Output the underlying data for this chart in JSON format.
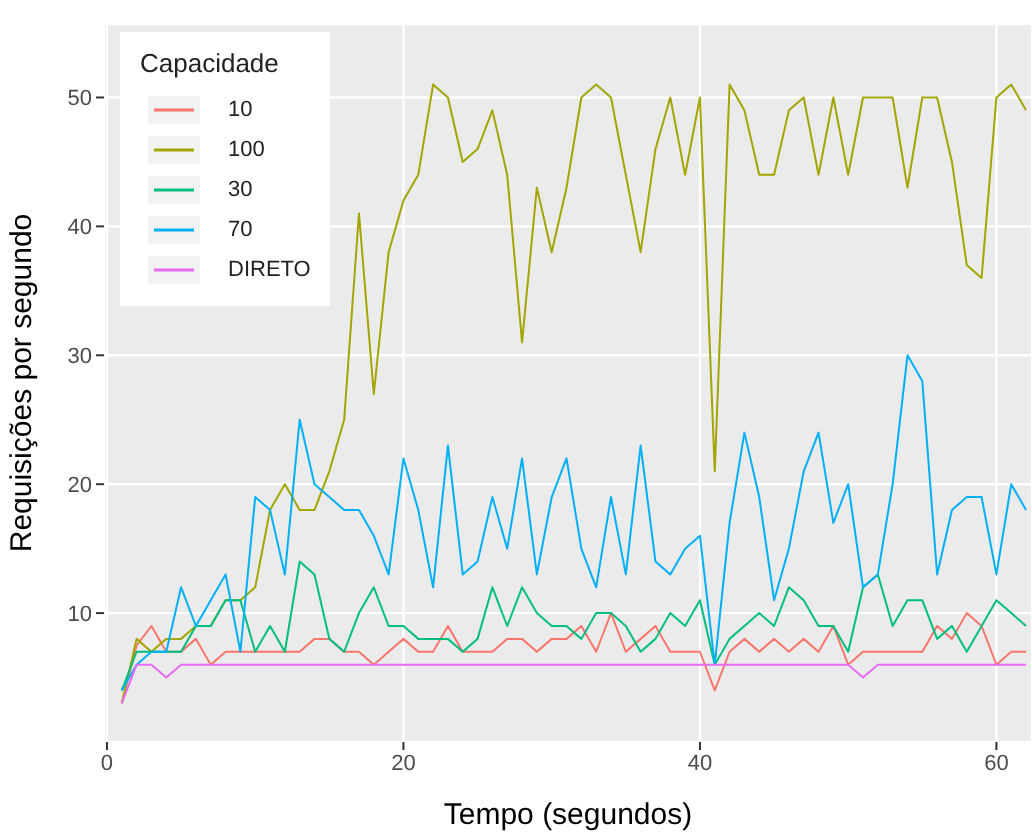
{
  "chart_data": {
    "type": "line",
    "xlabel": "Tempo (segundos)",
    "ylabel": "Requisições por segundo",
    "legend_title": "Capacidade",
    "legend": "top left",
    "grid": true,
    "marker": "none",
    "line_style": "solid",
    "x": [
      1,
      2,
      3,
      4,
      5,
      6,
      7,
      8,
      9,
      10,
      11,
      12,
      13,
      14,
      15,
      16,
      17,
      18,
      19,
      20,
      21,
      22,
      23,
      24,
      25,
      26,
      27,
      28,
      29,
      30,
      31,
      32,
      33,
      34,
      35,
      36,
      37,
      38,
      39,
      40,
      41,
      42,
      43,
      44,
      45,
      46,
      47,
      48,
      49,
      50,
      51,
      52,
      53,
      54,
      55,
      56,
      57,
      58,
      59,
      60,
      61,
      62
    ],
    "xlim": [
      -0.2,
      62.4
    ],
    "xticks": [
      0,
      20,
      40,
      60
    ],
    "ylim": [
      0,
      55.7
    ],
    "yticks": [
      10,
      20,
      30,
      40,
      50
    ],
    "series": [
      {
        "name": "10",
        "color": "#f8766d",
        "values": [
          3,
          7.5,
          9,
          7,
          7,
          8,
          6,
          7,
          7,
          7,
          7,
          7,
          7,
          8,
          8,
          7,
          7,
          6,
          7,
          8,
          7,
          7,
          9,
          7,
          7,
          7,
          8,
          8,
          7,
          8,
          8,
          9,
          7,
          10,
          7,
          8,
          9,
          7,
          7,
          7,
          4,
          7,
          8,
          7,
          8,
          7,
          8,
          7,
          9,
          6,
          7,
          7,
          7,
          7,
          7,
          9,
          8,
          10,
          9,
          6,
          7,
          7
        ]
      },
      {
        "name": "100",
        "color": "#a3a500",
        "values": [
          3,
          8,
          7,
          8,
          8,
          9,
          9,
          11,
          11,
          12,
          18,
          20,
          18,
          18,
          21,
          25,
          41,
          27,
          38,
          42,
          44,
          51,
          50,
          45,
          46,
          49,
          44,
          31,
          43,
          38,
          43,
          50,
          51,
          50,
          44,
          38,
          46,
          50,
          44,
          50,
          21,
          51,
          49,
          44,
          44,
          49,
          50,
          44,
          50,
          44,
          50,
          50,
          50,
          43,
          50,
          50,
          45,
          37,
          36,
          50,
          51,
          49
        ]
      },
      {
        "name": "30",
        "color": "#00bf7d",
        "values": [
          4,
          7,
          7,
          7,
          7,
          9,
          9,
          11,
          11,
          7,
          9,
          7,
          14,
          13,
          8,
          7,
          10,
          12,
          9,
          9,
          8,
          8,
          8,
          7,
          8,
          12,
          9,
          12,
          10,
          9,
          9,
          8,
          10,
          10,
          9,
          7,
          8,
          10,
          9,
          11,
          6,
          8,
          9,
          10,
          9,
          12,
          11,
          9,
          9,
          7,
          12,
          13,
          9,
          11,
          11,
          8,
          9,
          7,
          9,
          11,
          10,
          9
        ]
      },
      {
        "name": "70",
        "color": "#00b0f6",
        "values": [
          4,
          6,
          7,
          7,
          12,
          9,
          11,
          13,
          7,
          19,
          18,
          13,
          25,
          20,
          19,
          18,
          18,
          16,
          13,
          22,
          18,
          12,
          23,
          13,
          14,
          19,
          15,
          22,
          13,
          19,
          22,
          15,
          12,
          19,
          13,
          23,
          14,
          13,
          15,
          16,
          6,
          17,
          24,
          19,
          11,
          15,
          21,
          24,
          17,
          20,
          12,
          13,
          20,
          30,
          28,
          13,
          18,
          19,
          19,
          13,
          20,
          18
        ]
      },
      {
        "name": "DIRETO",
        "color": "#e76bf3",
        "values": [
          3,
          6,
          6,
          5,
          6,
          6,
          6,
          6,
          6,
          6,
          6,
          6,
          6,
          6,
          6,
          6,
          6,
          6,
          6,
          6,
          6,
          6,
          6,
          6,
          6,
          6,
          6,
          6,
          6,
          6,
          6,
          6,
          6,
          6,
          6,
          6,
          6,
          6,
          6,
          6,
          6,
          6,
          6,
          6,
          6,
          6,
          6,
          6,
          6,
          6,
          5,
          6,
          6,
          6,
          6,
          6,
          6,
          6,
          6,
          6,
          6,
          6
        ]
      }
    ]
  }
}
